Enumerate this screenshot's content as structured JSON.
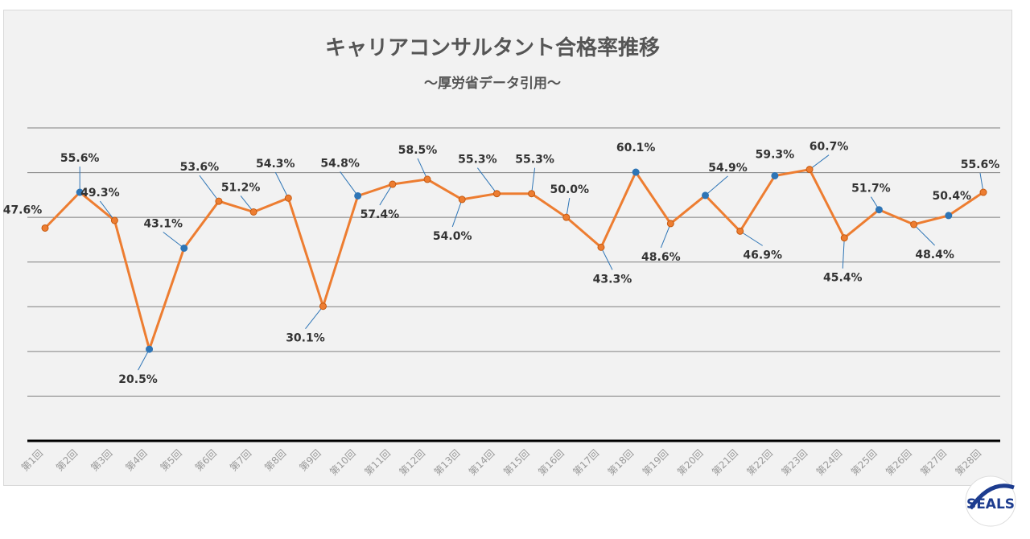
{
  "chart_data": {
    "type": "line",
    "title": "キャリアコンサルタント合格率推移",
    "subtitle": "～厚労省データ引用～",
    "categories": [
      "第1回",
      "第2回",
      "第3回",
      "第4回",
      "第5回",
      "第6回",
      "第7回",
      "第8回",
      "第9回",
      "第10回",
      "第11回",
      "第12回",
      "第13回",
      "第14回",
      "第15回",
      "第16回",
      "第17回",
      "第18回",
      "第19回",
      "第20回",
      "第21回",
      "第22回",
      "第23回",
      "第24回",
      "第25回",
      "第26回",
      "第27回",
      "第28回"
    ],
    "values": [
      47.6,
      55.6,
      49.3,
      20.5,
      43.1,
      53.6,
      51.2,
      54.3,
      30.1,
      54.8,
      57.4,
      58.5,
      54.0,
      55.3,
      55.3,
      50.0,
      43.3,
      60.1,
      48.6,
      54.9,
      46.9,
      59.3,
      60.7,
      45.4,
      51.7,
      48.4,
      50.4,
      55.6
    ],
    "data_labels": [
      "47.6%",
      "55.6%",
      "49.3%",
      "20.5%",
      "43.1%",
      "53.6%",
      "51.2%",
      "54.3%",
      "30.1%",
      "54.8%",
      "57.4%",
      "58.5%",
      "54.0%",
      "55.3%",
      "55.3%",
      "50.0%",
      "43.3%",
      "60.1%",
      "48.6%",
      "54.9%",
      "46.9%",
      "59.3%",
      "60.7%",
      "45.4%",
      "51.7%",
      "48.4%",
      "50.4%",
      "55.6%"
    ],
    "highlighted_points": [
      1,
      3,
      4,
      9,
      17,
      19,
      21,
      24,
      26
    ],
    "ylim": [
      0,
      70
    ],
    "grid": true,
    "xlabel": "",
    "ylabel": "",
    "colors": {
      "line": "#ed7d31",
      "marker_highlight": "#2e75b6",
      "leader": "#2e75b6",
      "grid": "#808080",
      "axis": "#000000"
    }
  },
  "logo": {
    "text": "SEALS"
  }
}
